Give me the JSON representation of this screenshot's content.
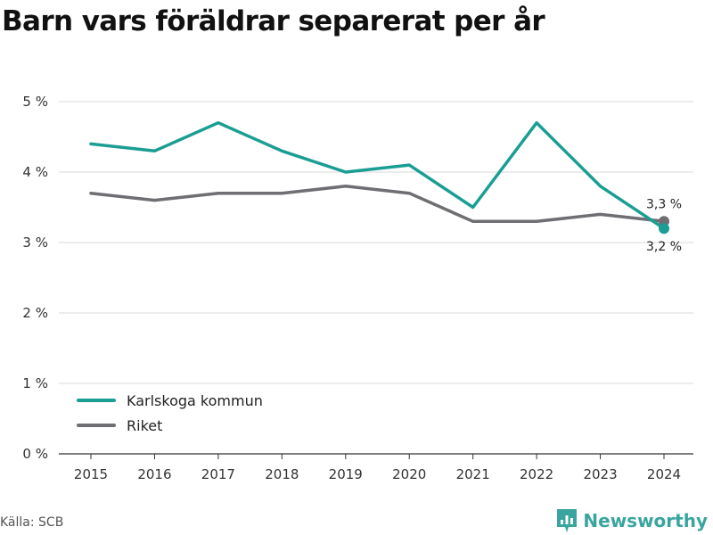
{
  "chart_data": {
    "type": "line",
    "title": "Barn vars föräldrar separerat per år",
    "categories": [
      "2015",
      "2016",
      "2017",
      "2018",
      "2019",
      "2020",
      "2021",
      "2022",
      "2023",
      "2024"
    ],
    "y_ticks": [
      "0 %",
      "1 %",
      "2 %",
      "3 %",
      "4 %",
      "5 %"
    ],
    "ylim": [
      0,
      5
    ],
    "grid": true,
    "legend_position": "bottom-left",
    "series": [
      {
        "name": "Karlskoga kommun",
        "color": "#1a9e94",
        "values": [
          4.4,
          4.3,
          4.7,
          4.3,
          4.0,
          4.1,
          3.5,
          4.7,
          3.8,
          3.2
        ],
        "end_label": "3,2 %"
      },
      {
        "name": "Riket",
        "color": "#6e6e73",
        "values": [
          3.7,
          3.6,
          3.7,
          3.7,
          3.8,
          3.7,
          3.3,
          3.3,
          3.4,
          3.3
        ],
        "end_label": "3,3 %"
      }
    ]
  },
  "footer": {
    "source": "Källa: SCB",
    "brand": "Newsworthy",
    "brand_color": "#3aa5a0",
    "brand_icon": "newsworthy-logo-icon"
  }
}
